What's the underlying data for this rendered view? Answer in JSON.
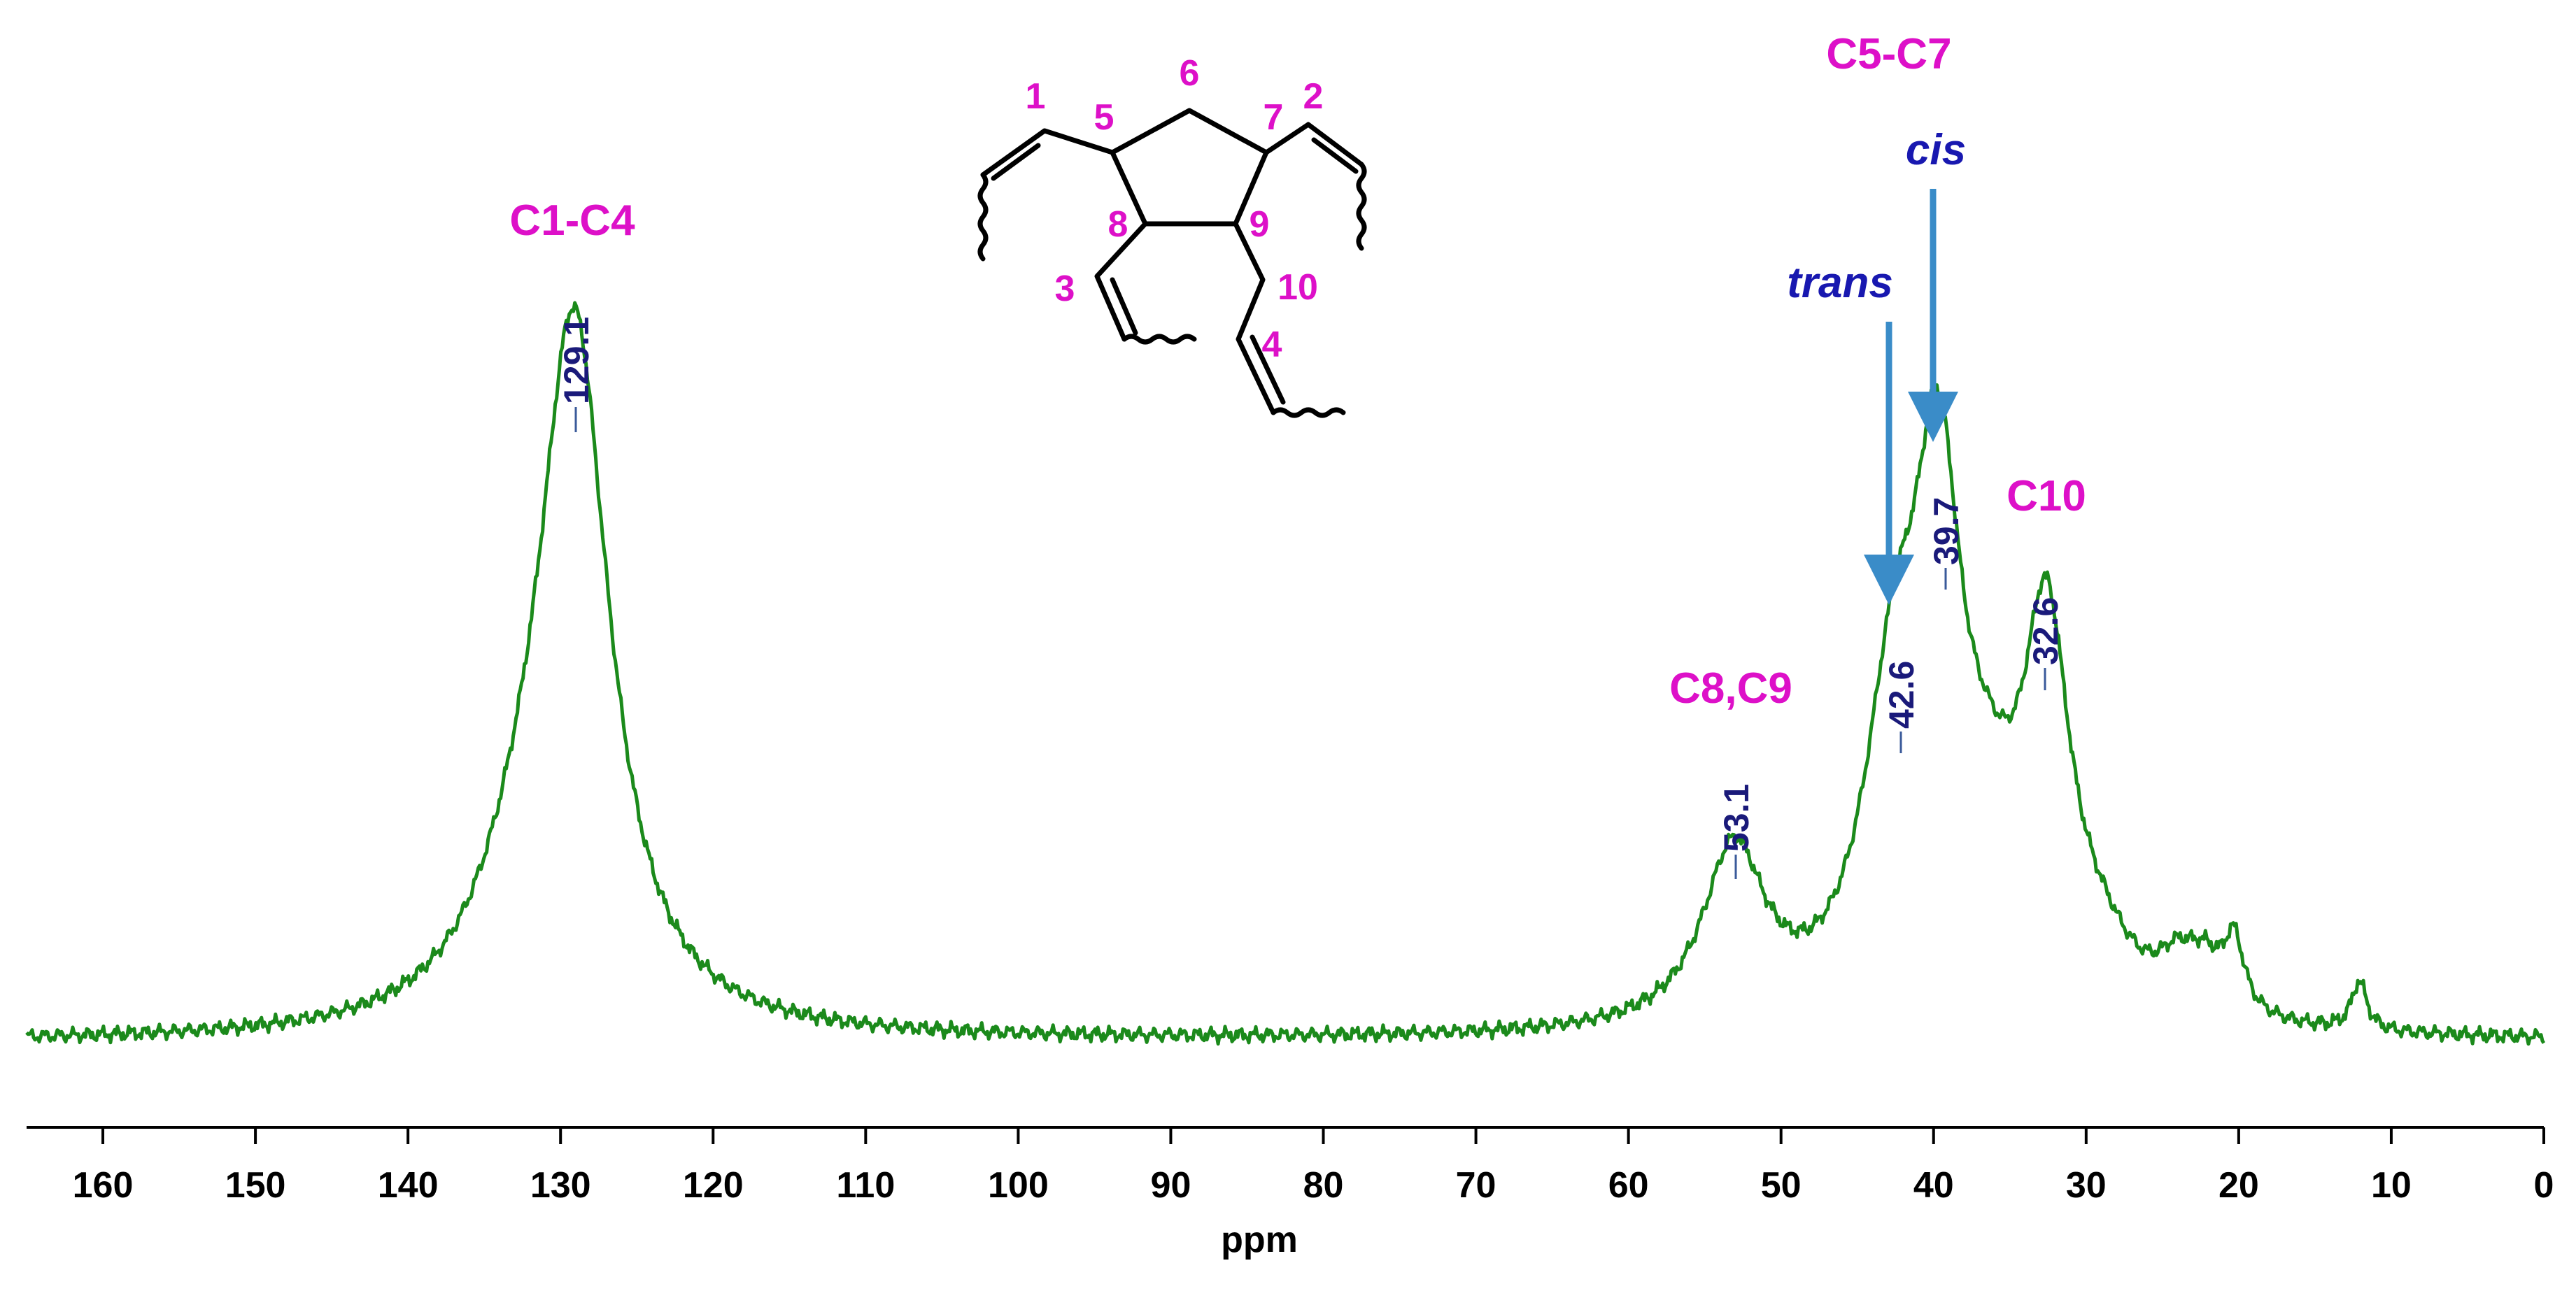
{
  "colors": {
    "spectrum": "#1b8a1b",
    "peak_label": "#1a1a7a",
    "assignment": "#dd10c8",
    "isomer_label": "#1818b0",
    "arrow": "#3a8cc8",
    "axis": "#000000"
  },
  "chart_data": {
    "type": "line",
    "title": "",
    "xlabel": "ppm",
    "ylabel": "",
    "xlim": [
      165,
      0
    ],
    "ylim": [
      0,
      1
    ],
    "x_reversed": true,
    "grid": false,
    "x_ticks": [
      160,
      150,
      140,
      130,
      120,
      110,
      100,
      90,
      80,
      70,
      60,
      50,
      40,
      30,
      20,
      10,
      0
    ],
    "baseline": 0.005,
    "peaks": [
      {
        "center": 129.1,
        "height": 0.98,
        "width": 2.8
      },
      {
        "center": 132.5,
        "height": 0.12,
        "width": 4.0
      },
      {
        "center": 53.1,
        "height": 0.25,
        "width": 2.5
      },
      {
        "center": 42.6,
        "height": 0.4,
        "width": 2.4
      },
      {
        "center": 39.7,
        "height": 0.66,
        "width": 1.9
      },
      {
        "center": 36.5,
        "height": 0.16,
        "width": 2.6
      },
      {
        "center": 32.6,
        "height": 0.52,
        "width": 1.9
      },
      {
        "center": 29.0,
        "height": 0.06,
        "width": 2.6
      },
      {
        "center": 24.0,
        "height": 0.06,
        "width": 1.6
      },
      {
        "center": 22.2,
        "height": 0.06,
        "width": 1.4
      },
      {
        "center": 20.3,
        "height": 0.1,
        "width": 0.8
      },
      {
        "center": 12.1,
        "height": 0.07,
        "width": 0.6
      }
    ],
    "peak_labels": [
      "129.1",
      "53.1",
      "42.6",
      "39.7",
      "32.6"
    ],
    "assignments": [
      "C1-C4",
      "C8,C9",
      "C5-C7",
      "C10"
    ],
    "isomer_labels": [
      "trans",
      "cis"
    ],
    "structure_numbers": [
      "1",
      "2",
      "3",
      "4",
      "5",
      "6",
      "7",
      "8",
      "9",
      "10"
    ]
  }
}
